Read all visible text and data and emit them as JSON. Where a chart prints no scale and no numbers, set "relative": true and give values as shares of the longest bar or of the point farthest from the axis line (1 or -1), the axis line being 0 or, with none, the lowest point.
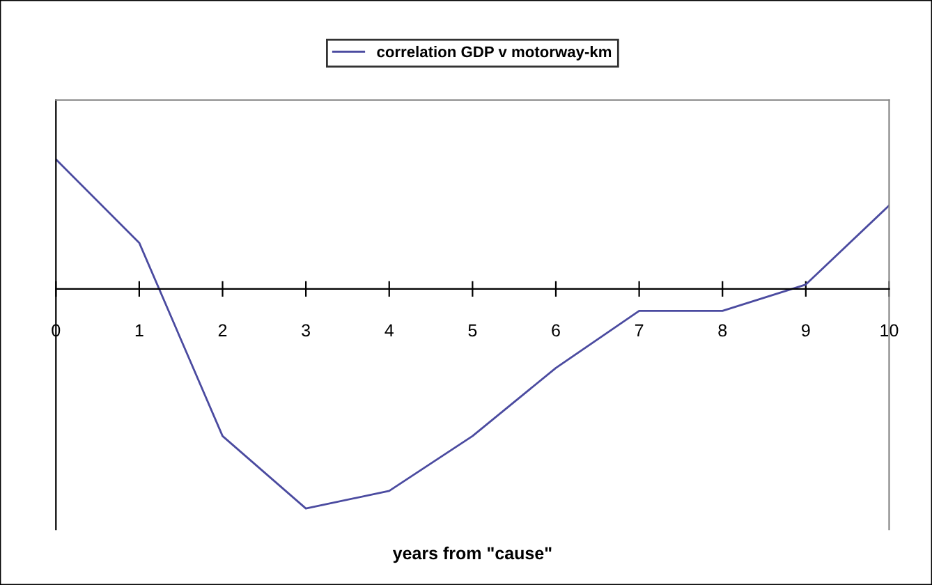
{
  "chart_data": {
    "type": "line",
    "relative": true,
    "xlabel": "years from \"cause\"",
    "x": [
      0,
      1,
      2,
      3,
      4,
      5,
      6,
      7,
      8,
      9,
      10
    ],
    "xlim": [
      0,
      10
    ],
    "xticks": [
      0,
      1,
      2,
      3,
      4,
      5,
      6,
      7,
      8,
      9,
      10
    ],
    "series": [
      {
        "name": "correlation GDP v motorway-km",
        "color": "#4b4ba0",
        "values": [
          0.59,
          0.21,
          -0.67,
          -1,
          -0.92,
          -0.67,
          -0.36,
          -0.1,
          -0.1,
          0.02,
          0.38
        ]
      }
    ],
    "legend": "top",
    "grid": false,
    "marker": "none",
    "line_style": "solid"
  }
}
